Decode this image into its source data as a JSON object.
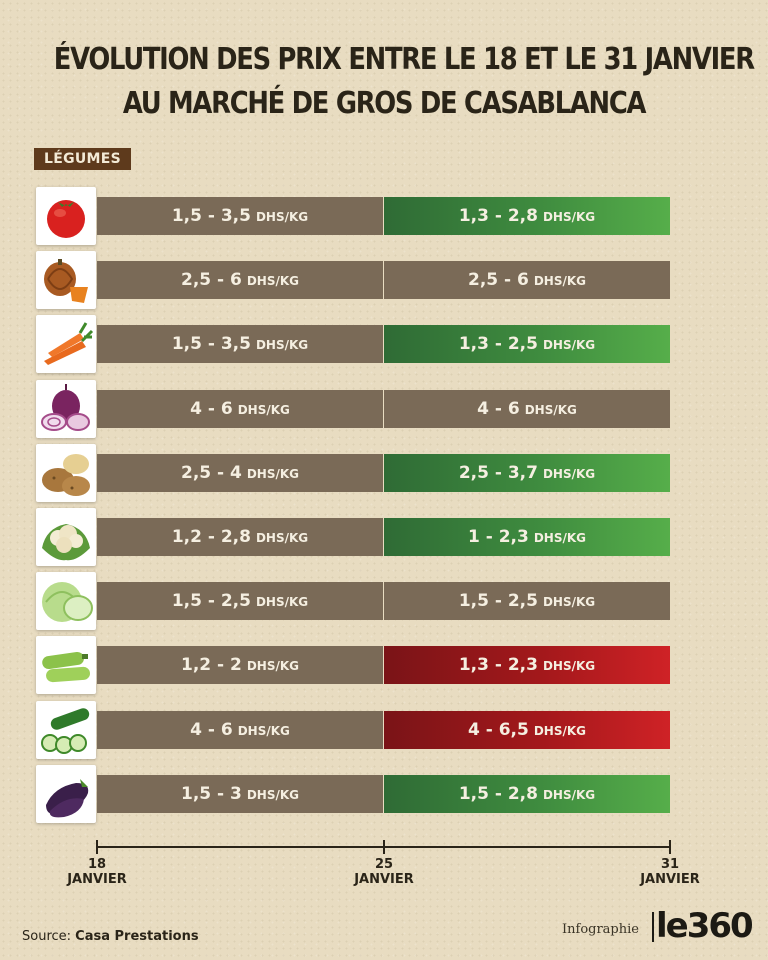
{
  "title_line1": "ÉVOLUTION DES PRIX ENTRE LE 18 ET LE 31 JANVIER",
  "title_line2": "AU MARCHÉ DE GROS DE CASABLANCA",
  "section_label": "LÉGUMES",
  "unit": "DHS/KG",
  "source_label": "Source:",
  "source_name": "Casa Prestations",
  "credit": "Infographie",
  "logo": "le360",
  "colors": {
    "neutral": "#7a6a57",
    "down": "#3f8c3f",
    "up": "#b11a1d"
  },
  "chart_data": {
    "type": "table",
    "x_ticks": [
      {
        "day": "18",
        "month": "JANVIER"
      },
      {
        "day": "25",
        "month": "JANVIER"
      },
      {
        "day": "31",
        "month": "JANVIER"
      }
    ],
    "rows": [
      {
        "icon": "tomato-icon",
        "period1": "1,5 - 3,5",
        "period2": "1,3 - 2,8",
        "trend": "down"
      },
      {
        "icon": "pumpkin-icon",
        "period1": "2,5 - 6",
        "period2": "2,5 - 6",
        "trend": "same"
      },
      {
        "icon": "carrot-icon",
        "period1": "1,5 - 3,5",
        "period2": "1,3 - 2,5",
        "trend": "down"
      },
      {
        "icon": "onion-icon",
        "period1": "4 - 6",
        "period2": "4 - 6",
        "trend": "same"
      },
      {
        "icon": "potato-icon",
        "period1": "2,5 - 4",
        "period2": "2,5 - 3,7",
        "trend": "down"
      },
      {
        "icon": "cauliflower-icon",
        "period1": "1,2 - 2,8",
        "period2": "1 - 2,3",
        "trend": "down"
      },
      {
        "icon": "cabbage-icon",
        "period1": "1,5 - 2,5",
        "period2": "1,5 - 2,5",
        "trend": "same"
      },
      {
        "icon": "zucchini-icon",
        "period1": "1,2 - 2",
        "period2": "1,3 - 2,3",
        "trend": "up"
      },
      {
        "icon": "cucumber-icon",
        "period1": "4 - 6",
        "period2": "4 - 6,5",
        "trend": "up"
      },
      {
        "icon": "eggplant-icon",
        "period1": "1,5 - 3",
        "period2": "1,5 - 2,8",
        "trend": "down"
      }
    ]
  }
}
